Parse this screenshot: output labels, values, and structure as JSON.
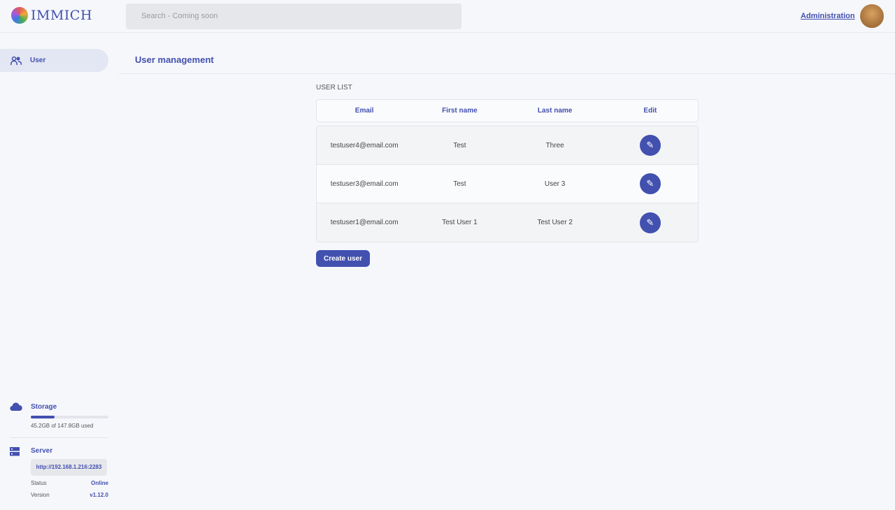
{
  "header": {
    "app_name": "IMMICH",
    "search_placeholder": "Search - Coming soon",
    "admin_link": "Administration"
  },
  "sidebar": {
    "items": [
      {
        "label": "User",
        "icon": "users-icon"
      }
    ]
  },
  "main": {
    "title": "User management",
    "list_label": "USER LIST",
    "columns": [
      "Email",
      "First name",
      "Last name",
      "Edit"
    ],
    "rows": [
      {
        "email": "testuser4@email.com",
        "first": "Test",
        "last": "Three"
      },
      {
        "email": "testuser3@email.com",
        "first": "Test",
        "last": "User 3"
      },
      {
        "email": "testuser1@email.com",
        "first": "Test User 1",
        "last": "Test User 2"
      }
    ],
    "create_button": "Create user"
  },
  "storage": {
    "label": "Storage",
    "used_text": "45.2GB of 147.8GB used",
    "used_fraction": 0.306
  },
  "server": {
    "label": "Server",
    "url": "http://192.168.1.216:2283",
    "status_label": "Status",
    "status": "Online",
    "version_label": "Version",
    "version": "v1.12.0"
  },
  "colors": {
    "accent": "#4250af"
  }
}
